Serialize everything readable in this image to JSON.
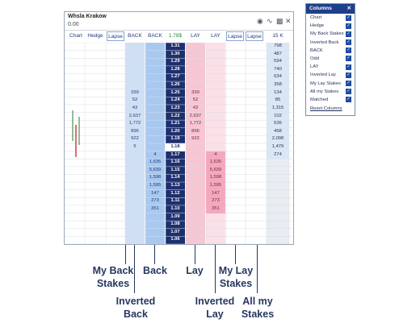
{
  "window": {
    "title": "Whsla Krakow",
    "amount": "0.00"
  },
  "columns_headers": {
    "chart": "Chart",
    "hedge": "Hedge",
    "lapse1": "Lapse",
    "back1": "BACK",
    "back2": "BACK",
    "price": "1.78$",
    "lay1": "LAY",
    "lay2": "LAY",
    "lapse2": "Lapse",
    "lapse3": "Lapse",
    "matched": "15 K"
  },
  "ladder": {
    "prices": [
      "1.31",
      "1.30",
      "1.29",
      "1.28",
      "1.27",
      "1.26",
      "1.25",
      "1.24",
      "1.23",
      "1.22",
      "1.21",
      "1.20",
      "1.19",
      "1.18",
      "1.17",
      "1.16",
      "1.15",
      "1.14",
      "1.13",
      "1.12",
      "1.11",
      "1.10",
      "1.09",
      "1.08",
      "1.07",
      "1.06"
    ],
    "my_back": [
      "",
      "",
      "",
      "",
      "",
      "",
      "339",
      "52",
      "43",
      "2,637",
      "1,772",
      "896",
      "922",
      "5",
      "",
      "",
      "",
      "",
      "",
      "",
      "",
      "",
      "",
      "",
      "",
      ""
    ],
    "inv_back": [
      "",
      "",
      "",
      "",
      "",
      "",
      "",
      "",
      "",
      "",
      "",
      "",
      "",
      "",
      "4",
      "1,635",
      "5,639",
      "1,598",
      "1,595",
      "147",
      "273",
      "351",
      "",
      "",
      "",
      ""
    ],
    "lay": [
      "",
      "",
      "",
      "",
      "",
      "",
      "339",
      "52",
      "43",
      "2,637",
      "1,772",
      "896",
      "922",
      "",
      "",
      "",
      "",
      "",
      "",
      "",
      "",
      "",
      "",
      "",
      "",
      ""
    ],
    "my_lay": [
      "",
      "",
      "",
      "",
      "",
      "",
      "",
      "",
      "",
      "",
      "",
      "",
      "",
      "",
      "4",
      "1,635",
      "5,639",
      "1,598",
      "1,595",
      "147",
      "273",
      "351",
      "",
      "",
      "",
      ""
    ],
    "matched": [
      "798",
      "487",
      "594",
      "740",
      "634",
      "358",
      "134",
      "85",
      "1,315",
      "102",
      "536",
      "458",
      "2,098",
      "1,479",
      "274",
      "",
      "",
      "",
      "",
      "",
      "",
      "",
      "",
      "",
      "",
      ""
    ]
  },
  "panel": {
    "title": "Columns",
    "items": [
      "Chart",
      "Hedge",
      "My Back Stakes",
      "Inverted Back",
      "BACK",
      "Odd",
      "LAY",
      "Inverted Lay",
      "My Lay Stakes",
      "All my Stakes",
      "Matched"
    ],
    "reset": "Reset Columns"
  },
  "annotations": {
    "my_back_stakes": "My Back\nStakes",
    "inverted_back": "Inverted\nBack",
    "back": "Back",
    "lay": "Lay",
    "inverted_lay": "Inverted\nLay",
    "my_lay_stakes": "My Lay\nStakes",
    "all_my_stakes": "All my\nStakes"
  },
  "colors": {
    "back_blue": "#a8c8ef",
    "lay_pink": "#f6c6d2",
    "price_navy": "#1e2f6e",
    "accent": "#1e3f8a"
  }
}
